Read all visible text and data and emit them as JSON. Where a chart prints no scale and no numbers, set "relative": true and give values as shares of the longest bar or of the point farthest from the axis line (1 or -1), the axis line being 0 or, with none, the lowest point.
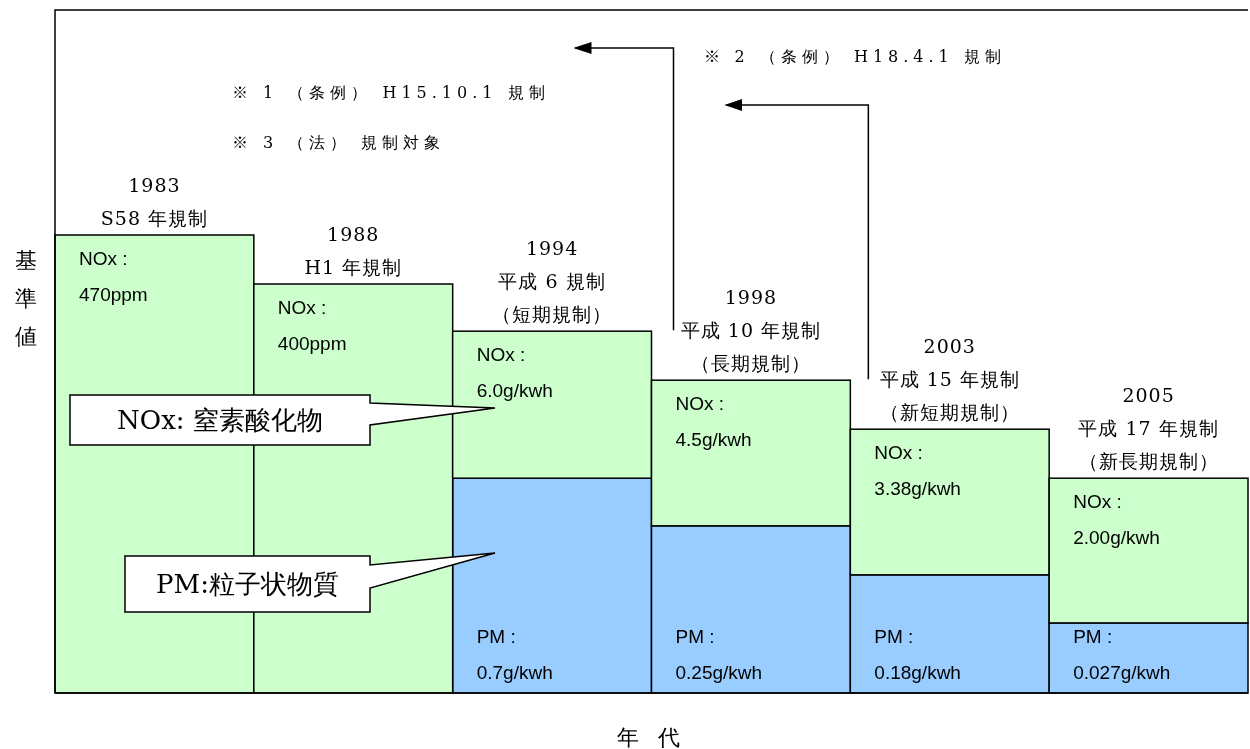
{
  "chart_data": {
    "type": "bar",
    "stacked": true,
    "relative": true,
    "xlabel": "年 代",
    "ylabel": "基準値",
    "categories": [
      "1983\nS58 年規制",
      "1988\nH1 年規制",
      "1994\n平成 6 規制（短期規制）",
      "1998\n平成 10 年規制（長期規制）",
      "2003\n平成 15 年規制（新短期規制）",
      "2005\n平成 17 年規制（新長期規制）"
    ],
    "series": [
      {
        "color": "#99ccff",
        "values": [
          null,
          null,
          0.469,
          0.365,
          0.258,
          0.153
        ]
      },
      {
        "color": "#ccffcc",
        "values": [
          1,
          0.893,
          0.321,
          0.318,
          0.318,
          0.316
        ]
      }
    ],
    "annotations": [
      "※ 1 （条例） H15.10.1 規制",
      "※ 3 （法） 規制対象",
      "※ 2 （条例） H18.4.1 規制",
      "NOx: 窒素酸化物",
      "PM:粒子状物質",
      {
        "text": "NOx :\n470ppm",
        "x": "1983\nS58 年規制",
        "y": 1
      },
      {
        "text": "NOx :\n400ppm",
        "x": "1988\nH1 年規制",
        "y": 0.893
      },
      {
        "text": "NOx :\n6.0g/kwh",
        "x": "1994\n平成 6 規制（短期規制）",
        "y": 0.79
      },
      {
        "text": "NOx :\n4.5g/kwh",
        "x": "1998\n平成 10 年規制（長期規制）",
        "y": 0.683
      },
      {
        "text": "NOx :\n3.38g/kwh",
        "x": "2003\n平成 15 年規制（新短期規制）",
        "y": 0.576
      },
      {
        "text": "NOx :\n2.00g/kwh",
        "x": "2005\n平成 17 年規制（新長期規制）",
        "y": 0.469
      },
      {
        "text": "PM :\n0.7g/kwh",
        "x": "1994\n平成 6 規制（短期規制）",
        "y": 0
      },
      {
        "text": "PM :\n0.25g/kwh",
        "x": "1998\n平成 10 年規制（長期規制）",
        "y": 0
      },
      {
        "text": "PM :\n0.18g/kwh",
        "x": "2003\n平成 15 年規制（新短期規制）",
        "y": 0
      },
      {
        "text": "PM :\n0.027g/kwh",
        "x": "2005\n平成 17 年規制（新長期規制）",
        "y": 0
      }
    ]
  }
}
